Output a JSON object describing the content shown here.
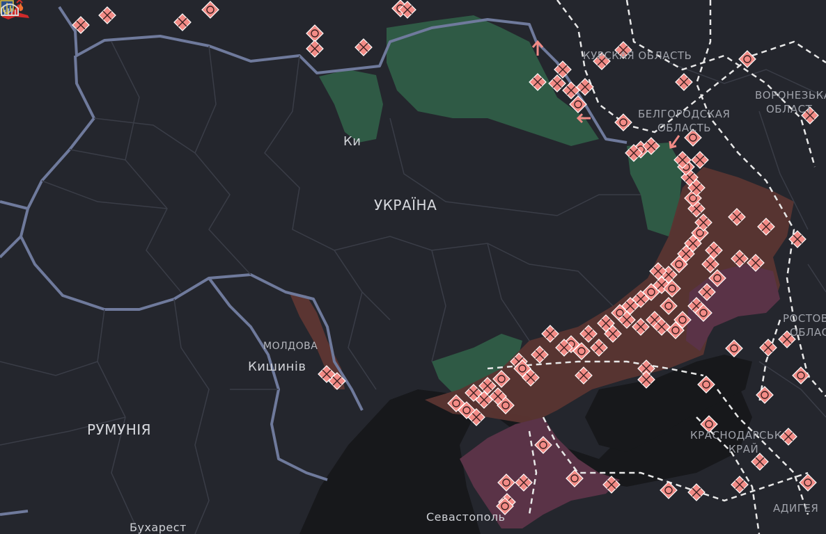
{
  "map": {
    "labels": {
      "kyiv": "Ки",
      "ukraine": "УКРАЇНА",
      "moldova": "МОЛДОВА",
      "chisinau": "Кишинів",
      "romania": "РУМУНІЯ",
      "bucharest": "Бухарест",
      "sevastopol": "Севастополь",
      "kursk": "КУРСКАЯ ОБЛАСТЬ",
      "belgorod_1": "БЕЛГОРОДСКАЯ",
      "belgorod_2": "ОБЛАСТЬ",
      "voronezh_1": "ВОРОНЕЗЬКА",
      "voronezh_2": "ОБЛАСТ",
      "rostov_1": "РОСТОВ",
      "rostov_2": "ОБЛАС",
      "krasnodar_1": "КРАСНОДАРСЬК",
      "krasnodar_2": "КРАЙ",
      "adygea": "АДИГЕЯ"
    },
    "icons": [
      "ukraine-coat-of-arms-icon",
      "aircraft-shot-down-icon",
      "hangar-fire-icon",
      "explosion-marker-icon",
      "strike-marker-icon",
      "arrow-icon"
    ],
    "colors": {
      "background": "#24262d",
      "sea": "#17181b",
      "border": "#6f7a9c",
      "liberated": "#2f5a45",
      "occupied": "#5b3532",
      "crimea": "#5a3347",
      "marker": "#f28b86"
    }
  }
}
